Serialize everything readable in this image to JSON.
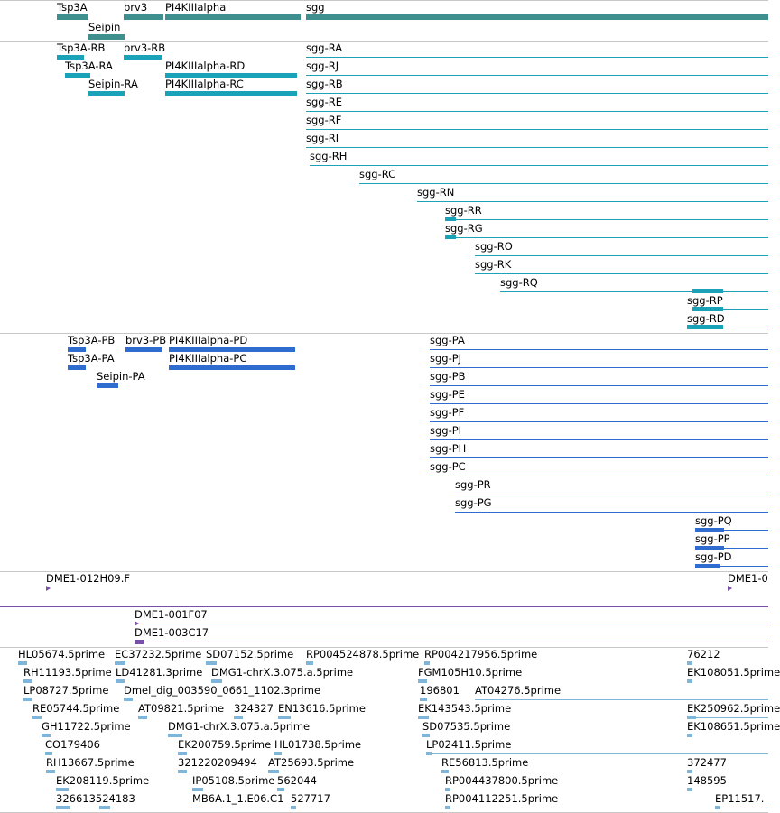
{
  "colors": {
    "gene": "#3f8f8f",
    "transcript": "#1aa3b8",
    "protein": "#2e6ccf",
    "clone": "#7a4fa8",
    "est": "#7fb5d9",
    "separator": "#c8c8c8"
  },
  "genes": [
    "Tsp3A",
    "Seipin",
    "brv3",
    "PI4KIIIalpha",
    "sgg"
  ],
  "transcripts": [
    "Tsp3A-RB",
    "brv3-RB",
    "Tsp3A-RA",
    "PI4KIIIalpha-RD",
    "Seipin-RA",
    "PI4KIIIalpha-RC",
    "sgg-RA",
    "sgg-RJ",
    "sgg-RB",
    "sgg-RE",
    "sgg-RF",
    "sgg-RI",
    "sgg-RH",
    "sgg-RC",
    "sgg-RN",
    "sgg-RR",
    "sgg-RG",
    "sgg-RO",
    "sgg-RK",
    "sgg-RQ",
    "sgg-RP",
    "sgg-RD"
  ],
  "proteins": [
    "Tsp3A-PB",
    "brv3-PB",
    "PI4KIIIalpha-PD",
    "Tsp3A-PA",
    "PI4KIIIalpha-PC",
    "Seipin-PA",
    "sgg-PA",
    "sgg-PJ",
    "sgg-PB",
    "sgg-PE",
    "sgg-PF",
    "sgg-PI",
    "sgg-PH",
    "sgg-PC",
    "sgg-PR",
    "sgg-PG",
    "sgg-PQ",
    "sgg-PP",
    "sgg-PD"
  ],
  "clones_a": [
    "DME1-012H09.F",
    "DME1-0"
  ],
  "clones_b": [
    "DME1-001F07",
    "DME1-003C17"
  ],
  "ests": [
    "HL05674.5prime",
    "EC37232.5prime",
    "SD07152.5prime",
    "RP004524878.5prime",
    "RP004217956.5prime",
    "76212",
    "RH11193.5prime",
    "LD41281.3prime",
    "DMG1-chrX.3.075.a.5prime",
    "FGM105H10.5prime",
    "EK108051.5prime",
    "LP08727.5prime",
    "Dmel_dig_003590_0661_1102.3prime",
    "196801",
    "AT04276.5prime",
    "RE05744.5prime",
    "AT09821.5prime",
    "324327",
    "EN13616.5prime",
    "EK143543.5prime",
    "EK250962.5prime",
    "GH11722.5prime",
    "DMG1-chrX.3.075.a.5prime",
    "SD07535.5prime",
    "EK108651.5prime",
    "CO179406",
    "EK200759.5prime",
    "HL01738.5prime",
    "LP02411.5prime",
    "RH13667.5prime",
    "321220209494",
    "AT25693.5prime",
    "RE56813.5prime",
    "372477",
    "EK208119.5prime",
    "IP05108.5prime",
    "562044",
    "RP004437800.5prime",
    "148595",
    "326613524183",
    "MB6A.1_1.E06.C1",
    "527717",
    "RP004112251.5prime",
    "EP11517."
  ]
}
